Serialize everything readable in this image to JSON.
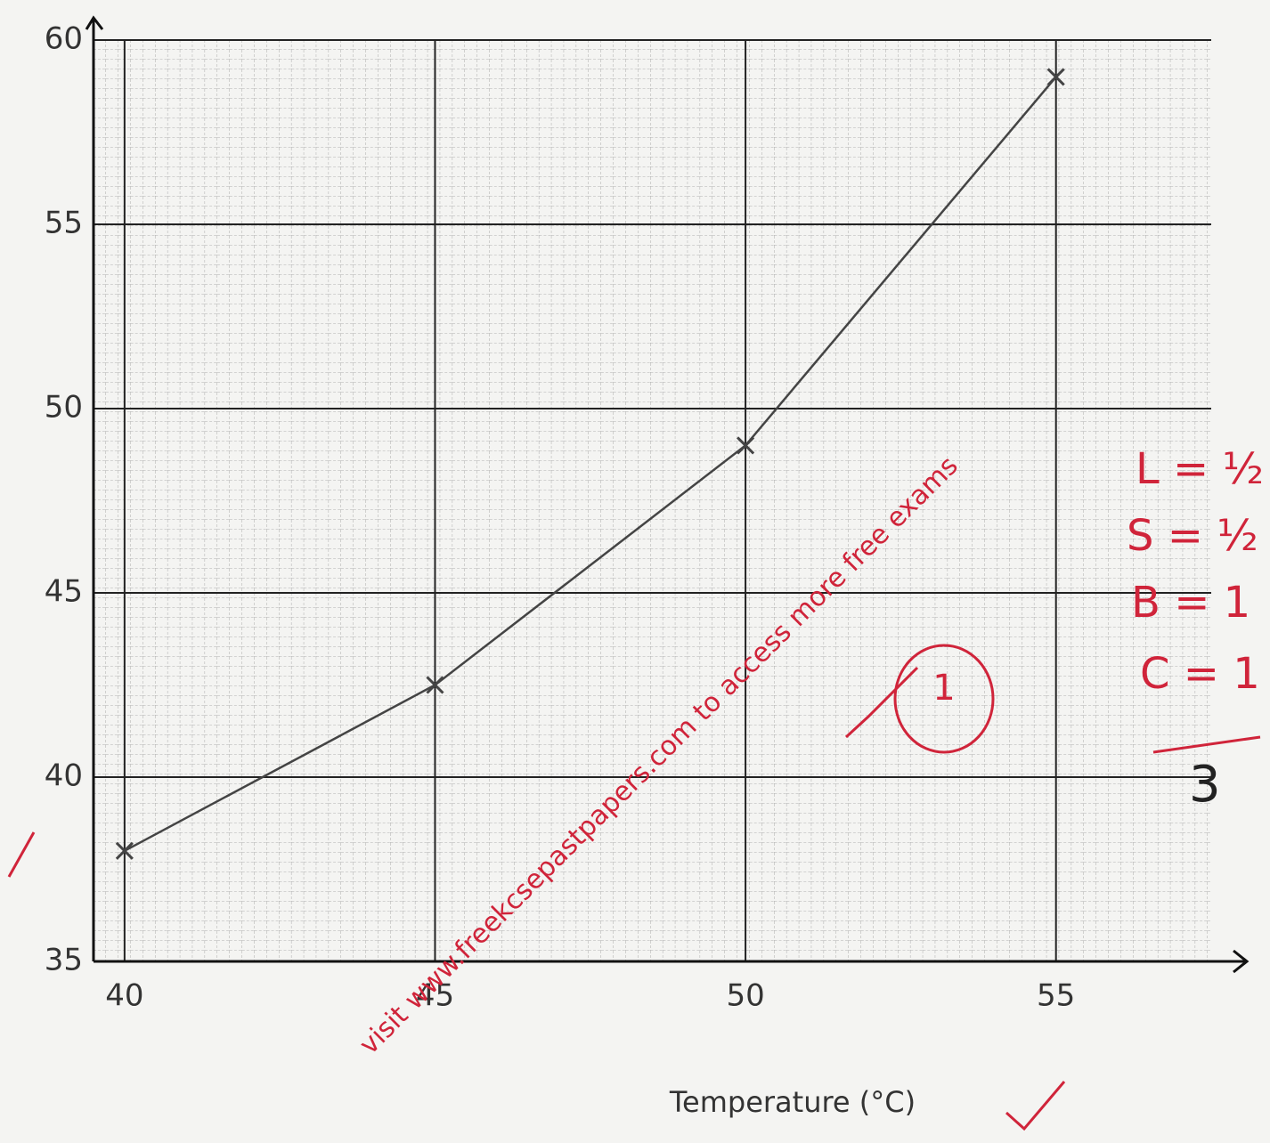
{
  "chart_data": {
    "type": "line",
    "x_label": "Temperature (°C)",
    "x": [
      40,
      45,
      50,
      55
    ],
    "series": [
      {
        "color": "#444444",
        "values": [
          38,
          42.5,
          49,
          59
        ]
      }
    ],
    "xlim": [
      39.5,
      57.5
    ],
    "xticks": [
      40,
      45,
      50,
      55
    ],
    "ylim": [
      35,
      60
    ],
    "yticks": [
      35,
      40,
      45,
      50,
      55,
      60
    ],
    "grid": true,
    "annotations": [
      "L = ½",
      "S = ½",
      "B = 1",
      "C = 1",
      "3",
      "1",
      "visit www.freekcsepastpapers.com to access more free exams"
    ]
  }
}
